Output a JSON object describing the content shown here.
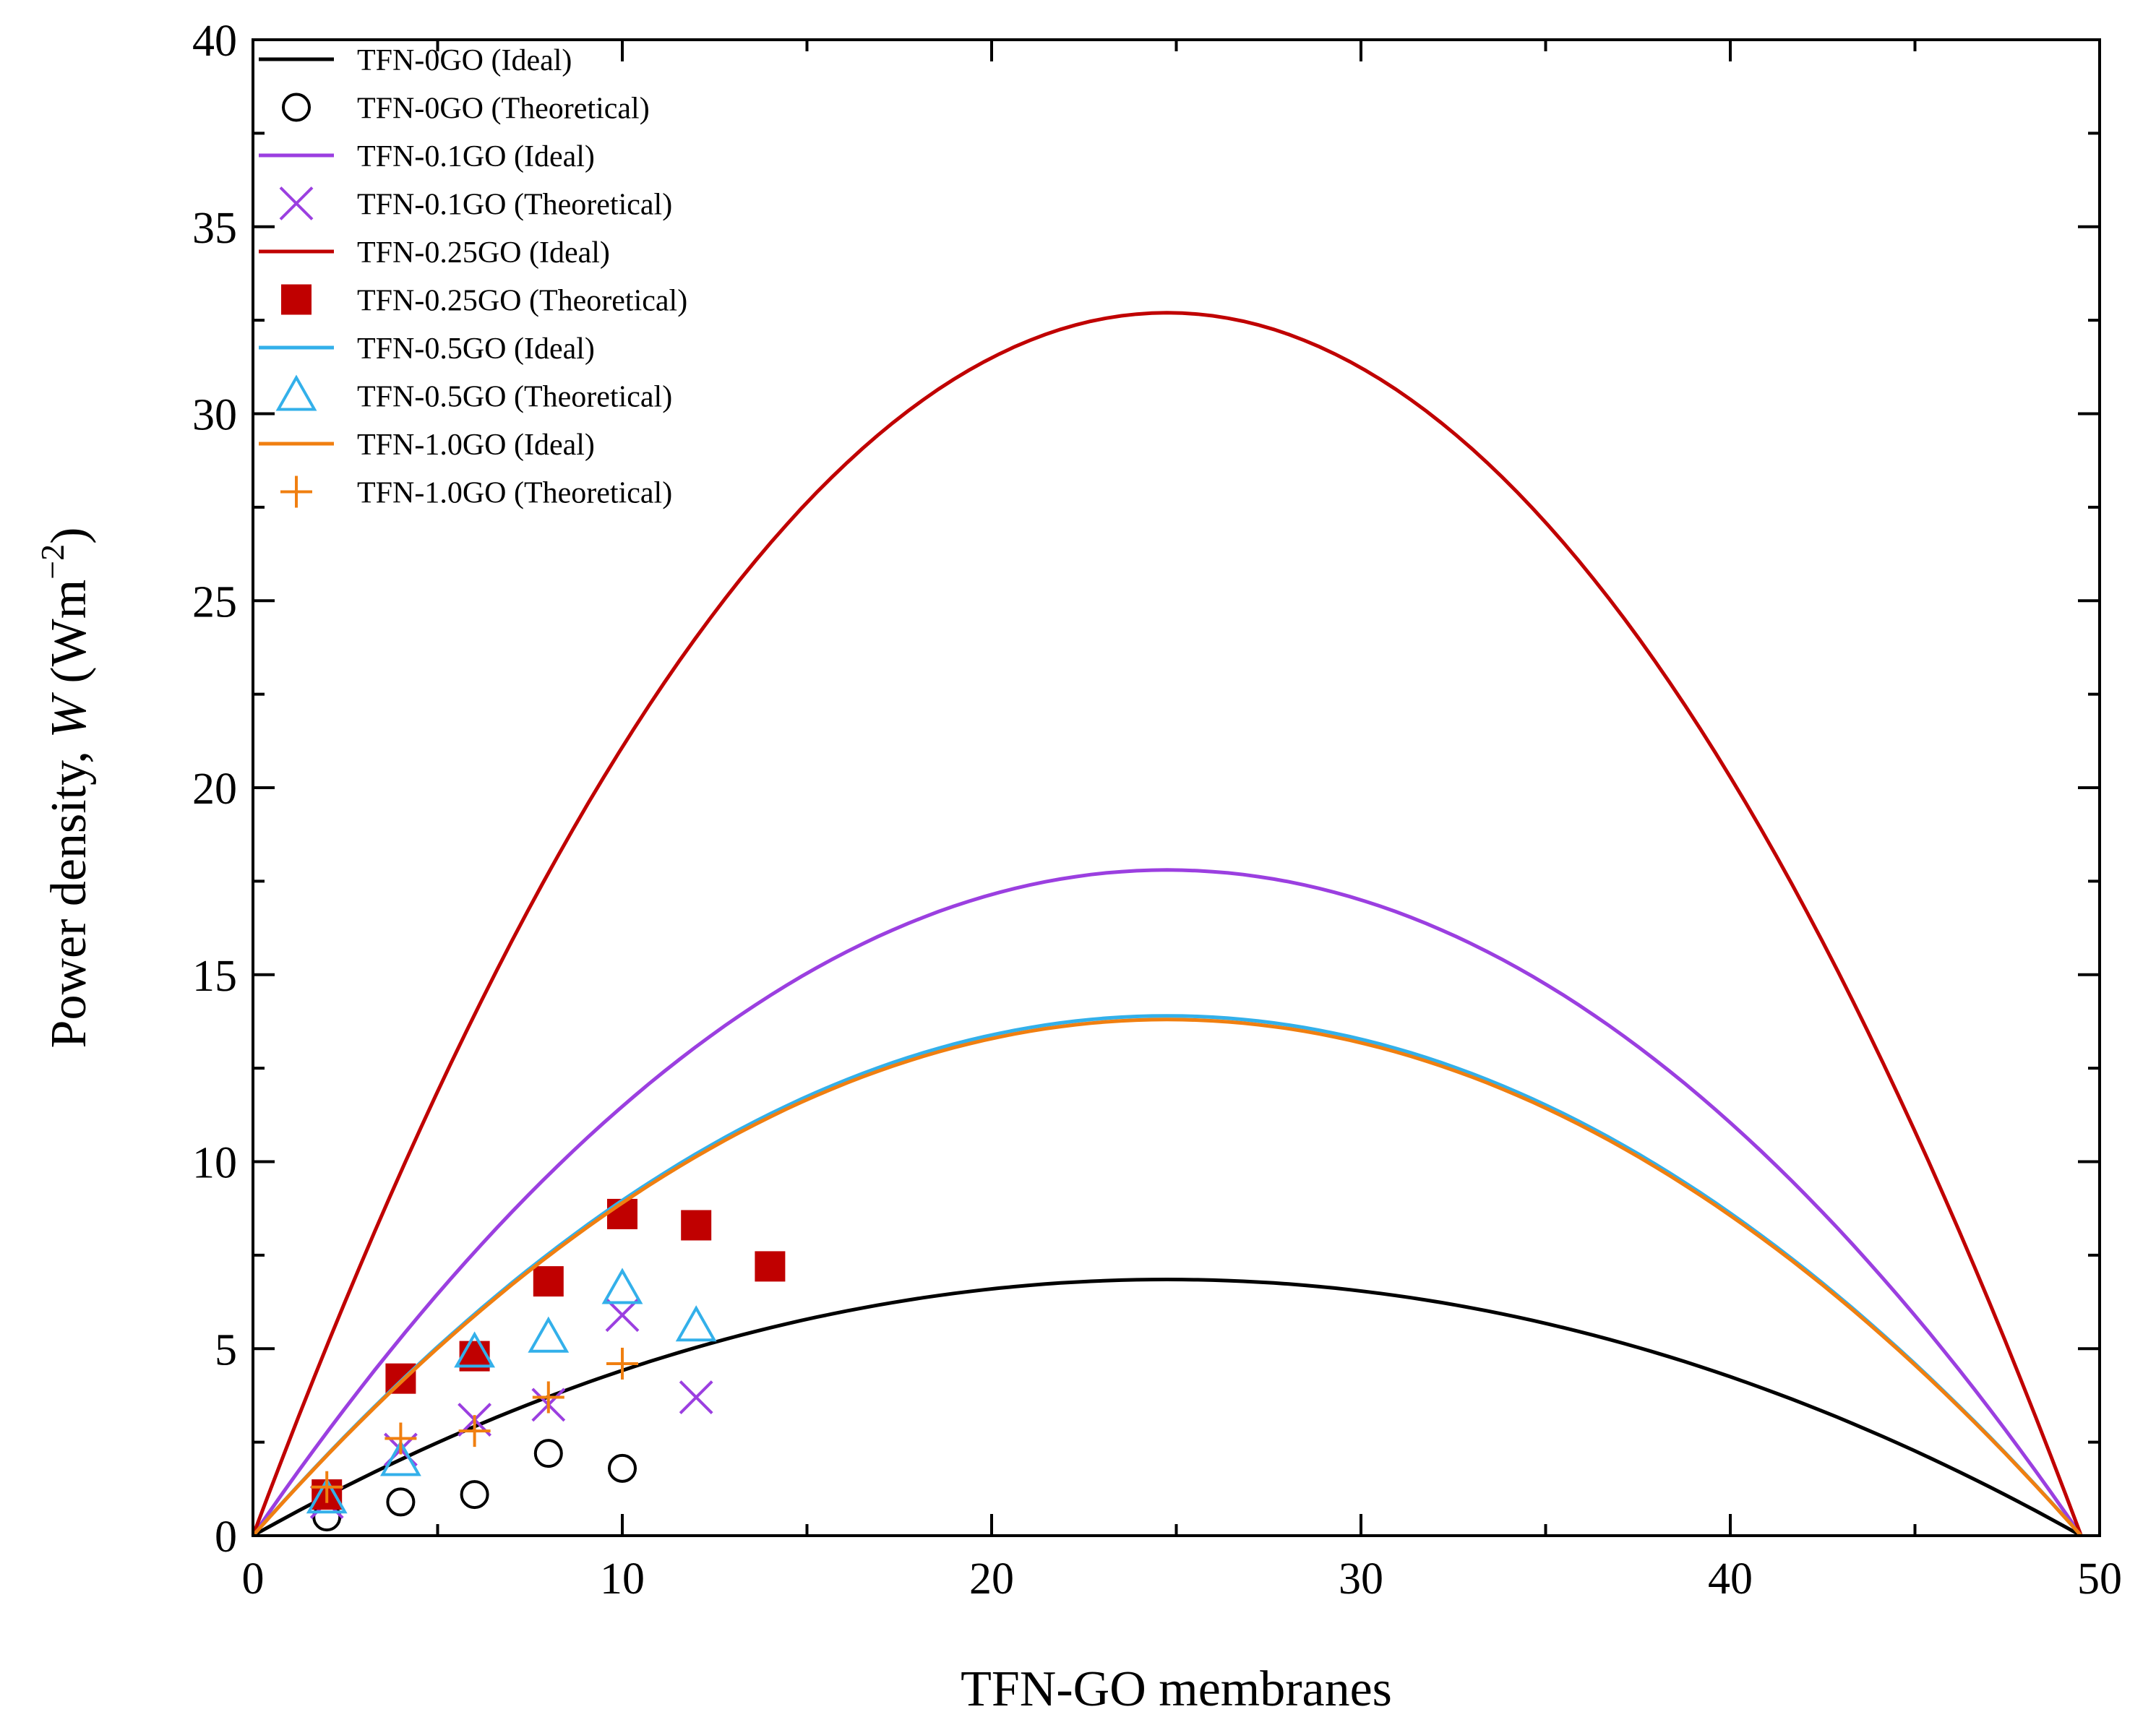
{
  "chart_data": {
    "type": "line",
    "xlabel": "TFN-GO membranes",
    "ylabel": {
      "prefix": "Power density, ",
      "symbol": "W",
      "unit_open": " (Wm",
      "unit_sup": "−2",
      "unit_close": ")"
    },
    "xlim": [
      0,
      50
    ],
    "ylim": [
      0,
      40
    ],
    "xticks": [
      0,
      10,
      20,
      30,
      40,
      50
    ],
    "yticks": [
      0,
      5,
      10,
      15,
      20,
      25,
      30,
      35,
      40
    ],
    "grid": false,
    "legend_position": "top-left",
    "ideal_x_end": 49.5,
    "series": [
      {
        "name": "TFN-0GO (Ideal)",
        "kind": "line",
        "color": "#000000",
        "peak_x": 24.75,
        "peak_y": 6.85
      },
      {
        "name": "TFN-0GO (Theoretical)",
        "kind": "scatter",
        "marker": "circle",
        "color": "#000000",
        "x": [
          2,
          4,
          6,
          8,
          10
        ],
        "y": [
          0.5,
          0.9,
          1.1,
          2.2,
          1.8
        ]
      },
      {
        "name": "TFN-0.1GO (Ideal)",
        "kind": "line",
        "color": "#9b3fe0",
        "peak_x": 24.75,
        "peak_y": 17.8
      },
      {
        "name": "TFN-0.1GO (Theoretical)",
        "kind": "scatter",
        "marker": "x",
        "color": "#9b3fe0",
        "x": [
          2,
          4,
          6,
          8,
          10,
          12
        ],
        "y": [
          0.9,
          2.3,
          3.1,
          3.5,
          5.9,
          3.7
        ]
      },
      {
        "name": "TFN-0.25GO (Ideal)",
        "kind": "line",
        "color": "#c00000",
        "peak_x": 24.75,
        "peak_y": 32.7
      },
      {
        "name": "TFN-0.25GO (Theoretical)",
        "kind": "scatter",
        "marker": "square",
        "color": "#c00000",
        "x": [
          2,
          4,
          6,
          8,
          10,
          12,
          14
        ],
        "y": [
          1.1,
          4.2,
          4.8,
          6.8,
          8.6,
          8.3,
          7.2
        ]
      },
      {
        "name": "TFN-0.5GO (Ideal)",
        "kind": "line",
        "color": "#33b0ea",
        "peak_x": 24.75,
        "peak_y": 13.9
      },
      {
        "name": "TFN-0.5GO (Theoretical)",
        "kind": "scatter",
        "marker": "triangle",
        "color": "#33b0ea",
        "x": [
          2,
          4,
          6,
          8,
          10,
          12
        ],
        "y": [
          1.0,
          2.0,
          4.9,
          5.3,
          6.6,
          5.6
        ]
      },
      {
        "name": "TFN-1.0GO (Ideal)",
        "kind": "line",
        "color": "#f07f10",
        "peak_x": 24.75,
        "peak_y": 13.8
      },
      {
        "name": "TFN-1.0GO (Theoretical)",
        "kind": "scatter",
        "marker": "plus",
        "color": "#f07f10",
        "x": [
          2,
          4,
          6,
          8,
          10
        ],
        "y": [
          1.3,
          2.6,
          2.8,
          3.7,
          4.6
        ]
      }
    ]
  }
}
